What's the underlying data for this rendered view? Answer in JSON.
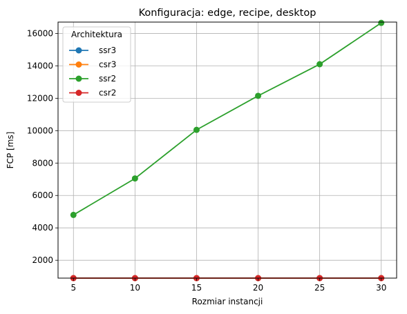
{
  "chart_data": {
    "type": "line",
    "title": "Konfiguracja: edge, recipe, desktop",
    "xlabel": "Rozmiar instancji",
    "ylabel": "FCP [ms]",
    "x": [
      5,
      10,
      15,
      20,
      25,
      30
    ],
    "xticks": [
      5,
      10,
      15,
      20,
      25,
      30
    ],
    "yticks": [
      2000,
      4000,
      6000,
      8000,
      10000,
      12000,
      14000,
      16000
    ],
    "xlim": [
      3.75,
      31.25
    ],
    "ylim": [
      900,
      16700
    ],
    "grid": true,
    "legend": {
      "title": "Architektura",
      "position": "top-left"
    },
    "series": [
      {
        "name": "ssr3",
        "color": "#1f77b4",
        "values": [
          900,
          900,
          900,
          900,
          900,
          900
        ]
      },
      {
        "name": "csr3",
        "color": "#ff7f0e",
        "values": [
          900,
          900,
          900,
          900,
          900,
          900
        ]
      },
      {
        "name": "ssr2",
        "color": "#2ca02c",
        "values": [
          4800,
          7050,
          10050,
          12150,
          14100,
          16650
        ]
      },
      {
        "name": "csr2",
        "color": "#d62728",
        "values": [
          900,
          900,
          900,
          900,
          900,
          900
        ]
      }
    ]
  }
}
